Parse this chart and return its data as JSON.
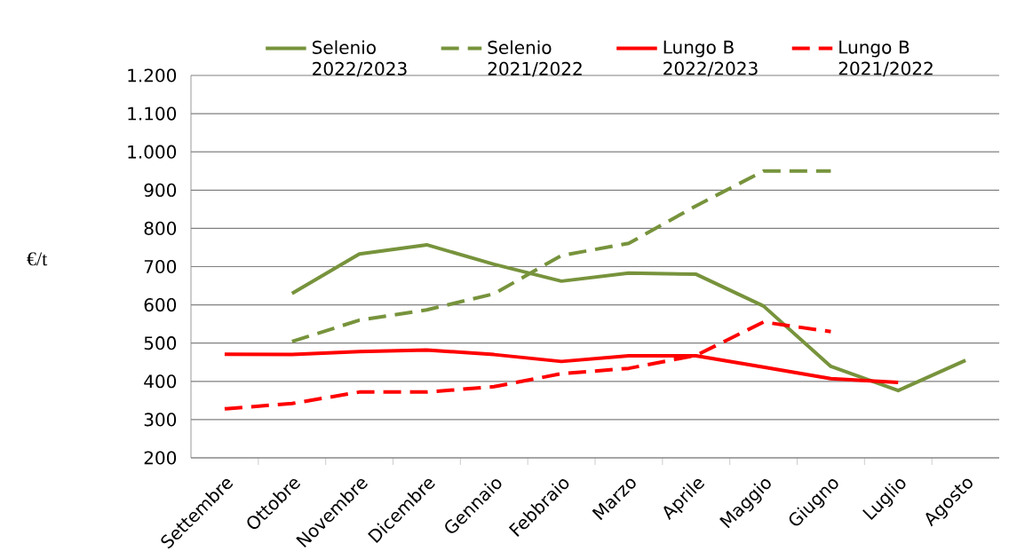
{
  "chart_data": {
    "type": "line",
    "ylabel": "€/t",
    "categories": [
      "Settembre",
      "Ottobre",
      "Novembre",
      "Dicembre",
      "Gennaio",
      "Febbraio",
      "Marzo",
      "Aprile",
      "Maggio",
      "Giugno",
      "Luglio",
      "Agosto"
    ],
    "series": [
      {
        "name": "Selenio 2022/2023",
        "color": "#77933c",
        "line_style": "solid",
        "values": [
          null,
          630,
          733,
          757,
          706,
          662,
          683,
          680,
          597,
          439,
          376,
          455
        ]
      },
      {
        "name": "Selenio 2021/2022",
        "color": "#77933c",
        "line_style": "dashed",
        "values": [
          null,
          504,
          560,
          587,
          629,
          729,
          761,
          859,
          950,
          950,
          null,
          null
        ]
      },
      {
        "name": "Lungo B 2022/2023",
        "color": "#ff0000",
        "line_style": "solid",
        "values": [
          471,
          470,
          478,
          482,
          470,
          452,
          467,
          467,
          437,
          407,
          397,
          null
        ]
      },
      {
        "name": "Lungo B 2021/2022",
        "color": "#ff0000",
        "line_style": "dashed",
        "values": [
          328,
          342,
          372,
          372,
          386,
          420,
          434,
          468,
          555,
          530,
          null,
          null
        ]
      }
    ],
    "ylim": [
      200,
      1200
    ],
    "yticks": [
      200,
      300,
      400,
      500,
      600,
      700,
      800,
      900,
      {
        "value": 1000,
        "label": "1.000"
      },
      {
        "value": 1100,
        "label": "1.100"
      },
      {
        "value": 1200,
        "label": "1.200"
      }
    ],
    "grid": "y",
    "legend": "top",
    "marker": "none"
  }
}
